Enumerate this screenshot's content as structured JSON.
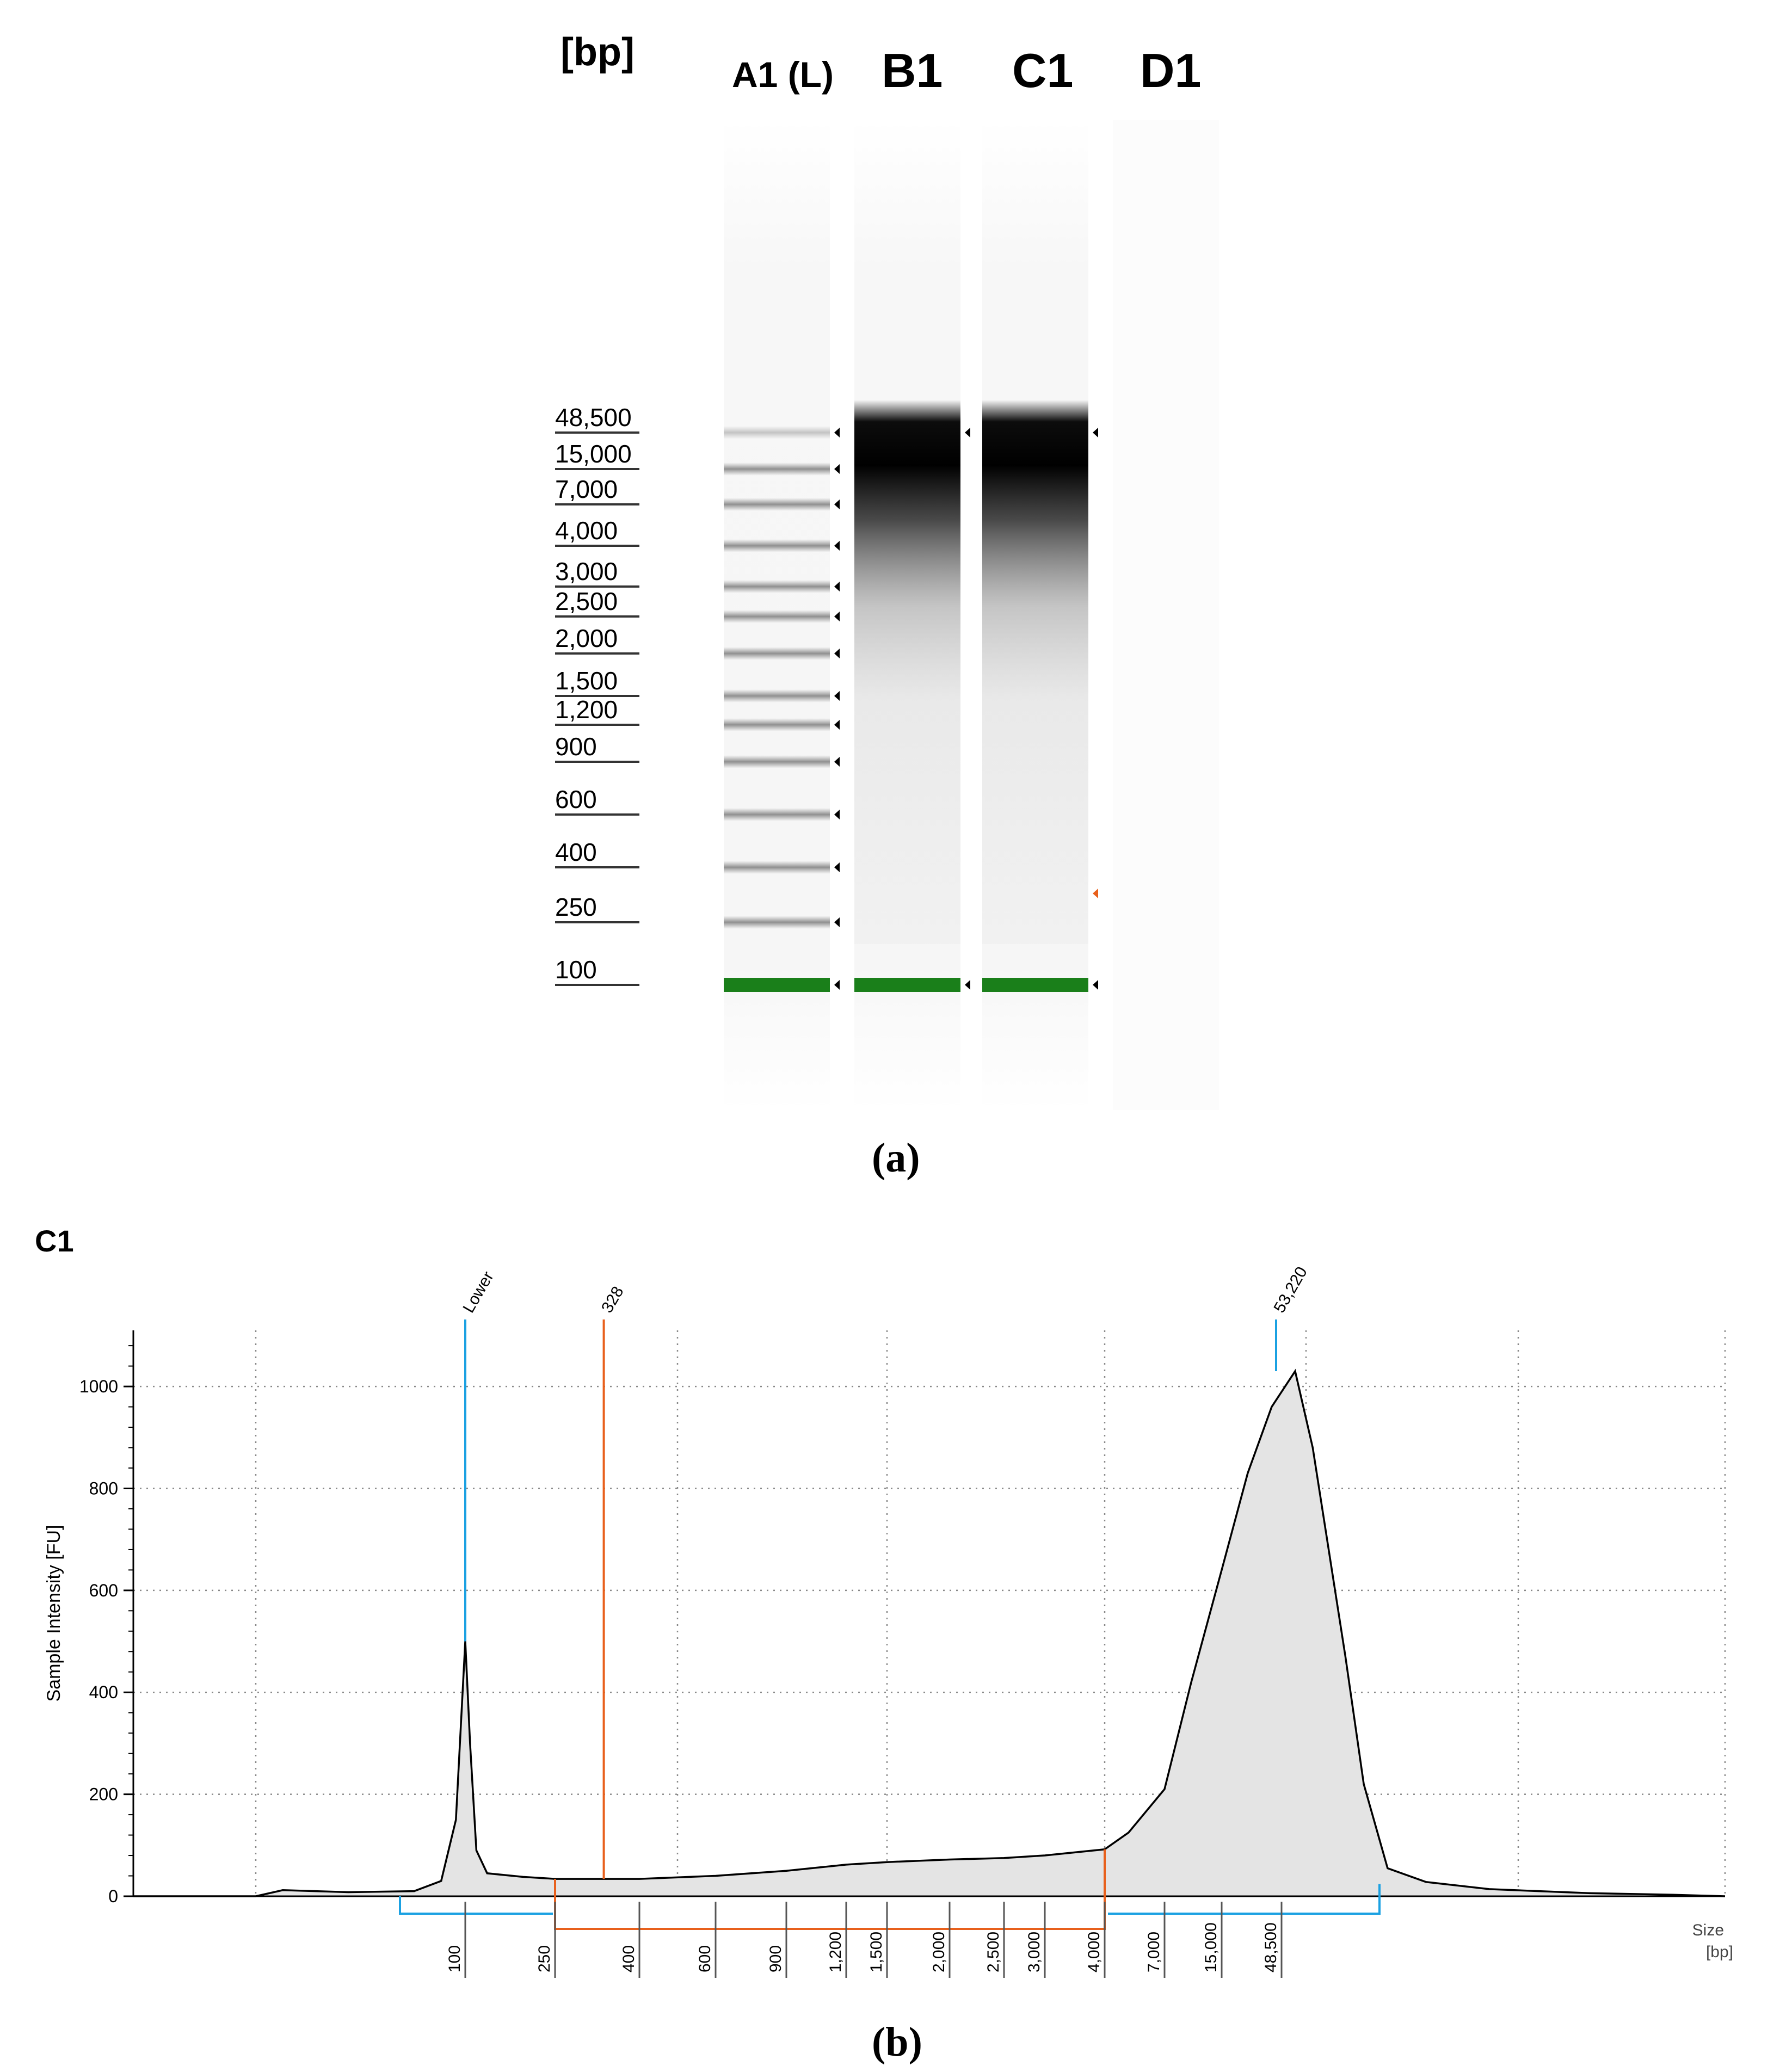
{
  "panel_a": {
    "caption": "(a)",
    "unit_label": "[bp]",
    "lane_labels": [
      "A1 (L)",
      "B1",
      "C1",
      "D1"
    ],
    "ladder_sizes": [
      "48,500",
      "15,000",
      "7,000",
      "4,000",
      "3,000",
      "2,500",
      "2,000",
      "1,500",
      "1,200",
      "900",
      "600",
      "400",
      "250",
      "100"
    ],
    "colors": {
      "lower_marker": "#1a7f1a",
      "upper_marker_flag": "#e8601c"
    }
  },
  "panel_b": {
    "caption": "(b)",
    "sample_title": "C1",
    "colors": {
      "marker_line": "#1ba1e2",
      "region_line": "#e8601c",
      "trace_fill": "#e4e4e4"
    }
  },
  "chart_data": [
    {
      "type": "table",
      "title": "",
      "ylabel": "[bp]",
      "lanes": [
        "A1 (L)",
        "B1",
        "C1",
        "D1"
      ],
      "ladder_sizes": [
        48500,
        15000,
        7000,
        4000,
        3000,
        2500,
        2000,
        1500,
        1200,
        900,
        600,
        400,
        250,
        100
      ],
      "lane_bands": {
        "A1 (L)": [
          48500,
          15000,
          7000,
          4000,
          3000,
          2500,
          2000,
          1500,
          1200,
          900,
          600,
          400,
          250,
          100
        ],
        "B1": [
          48500,
          100
        ],
        "C1": [
          48500,
          100
        ],
        "D1": []
      }
    },
    {
      "type": "area",
      "title": "C1",
      "xlabel": "Size [bp]",
      "ylabel": "Sample Intensity [FU]",
      "x_ticks": [
        "100",
        "250",
        "400",
        "600",
        "900",
        "1,200",
        "1,500",
        "2,000",
        "2,500",
        "3,000",
        "4,000",
        "7,000",
        "15,000",
        "48,500"
      ],
      "y_ticks": [
        "0",
        "200",
        "400",
        "600",
        "800",
        "1000"
      ],
      "ylim": [
        0,
        1110
      ],
      "x_label_top": "Size",
      "x_label_bottom": "[bp]",
      "peaks": [
        {
          "label": "Lower",
          "size_bp": 100,
          "intensity": 500
        },
        {
          "label": "53,220",
          "size_bp": 53220,
          "intensity": 1030
        }
      ],
      "region_marker": {
        "label": "328",
        "size_bp": 328
      },
      "region": {
        "from_bp": 250,
        "to_bp": 4000
      },
      "series": [
        {
          "values": [
            {
              "x": 25,
              "y": 0
            },
            {
              "x": 40,
              "y": 0
            },
            {
              "x": 45,
              "y": 12
            },
            {
              "x": 60,
              "y": 8
            },
            {
              "x": 80,
              "y": 10
            },
            {
              "x": 90,
              "y": 30
            },
            {
              "x": 96,
              "y": 150
            },
            {
              "x": 100,
              "y": 500
            },
            {
              "x": 105,
              "y": 300
            },
            {
              "x": 112,
              "y": 90
            },
            {
              "x": 125,
              "y": 45
            },
            {
              "x": 180,
              "y": 38
            },
            {
              "x": 250,
              "y": 34
            },
            {
              "x": 400,
              "y": 34
            },
            {
              "x": 600,
              "y": 40
            },
            {
              "x": 900,
              "y": 50
            },
            {
              "x": 1200,
              "y": 62
            },
            {
              "x": 1500,
              "y": 67
            },
            {
              "x": 2000,
              "y": 72
            },
            {
              "x": 2500,
              "y": 75
            },
            {
              "x": 3000,
              "y": 80
            },
            {
              "x": 4000,
              "y": 92
            },
            {
              "x": 5000,
              "y": 125
            },
            {
              "x": 7000,
              "y": 210
            },
            {
              "x": 10000,
              "y": 420
            },
            {
              "x": 15000,
              "y": 640
            },
            {
              "x": 25000,
              "y": 830
            },
            {
              "x": 40000,
              "y": 960
            },
            {
              "x": 53220,
              "y": 1030
            },
            {
              "x": 60000,
              "y": 880
            },
            {
              "x": 75000,
              "y": 470
            },
            {
              "x": 85000,
              "y": 220
            },
            {
              "x": 100000,
              "y": 55
            },
            {
              "x": 130000,
              "y": 28
            },
            {
              "x": 200000,
              "y": 14
            },
            {
              "x": 400000,
              "y": 6
            },
            {
              "x": 700000,
              "y": 3
            },
            {
              "x": 1000000,
              "y": 0
            }
          ]
        }
      ]
    }
  ]
}
